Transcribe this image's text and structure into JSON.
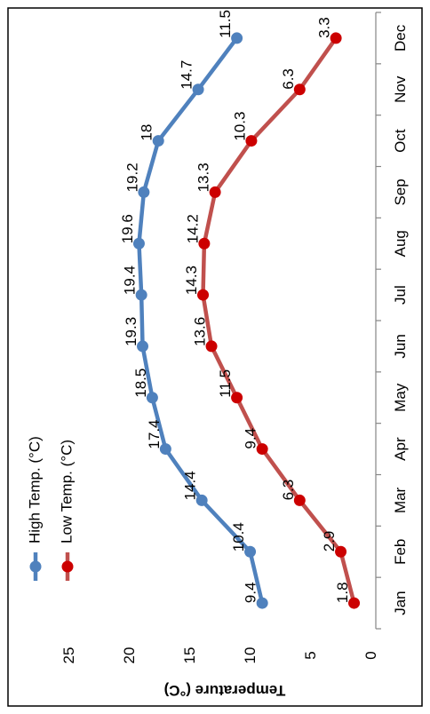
{
  "chart_data": {
    "type": "line",
    "categories": [
      "Jan",
      "Feb",
      "Mar",
      "Apr",
      "May",
      "Jun",
      "Jul",
      "Aug",
      "Sep",
      "Oct",
      "Nov",
      "Dec"
    ],
    "series": [
      {
        "name": "High Temp. (°C)",
        "color": "#4f81bd",
        "values": [
          9.4,
          10.4,
          14.4,
          17.4,
          18.5,
          19.3,
          19.4,
          19.6,
          19.2,
          18,
          14.7,
          11.5
        ]
      },
      {
        "name": "Low Temp. (°C)",
        "color": "#c0504d",
        "marker_color": "#cc0000",
        "values": [
          1.8,
          2.9,
          6.3,
          9.4,
          11.5,
          13.6,
          14.3,
          14.2,
          13.3,
          10.3,
          6.3,
          3.3
        ]
      }
    ],
    "ylabel": "Temperature (°C)",
    "xlabel": "",
    "ylim": [
      0,
      25
    ],
    "yticks": [
      0,
      5,
      10,
      15,
      20,
      25
    ],
    "grid": false,
    "legend_position": "top-left",
    "orientation": "rotated 90 degrees clockwise"
  }
}
